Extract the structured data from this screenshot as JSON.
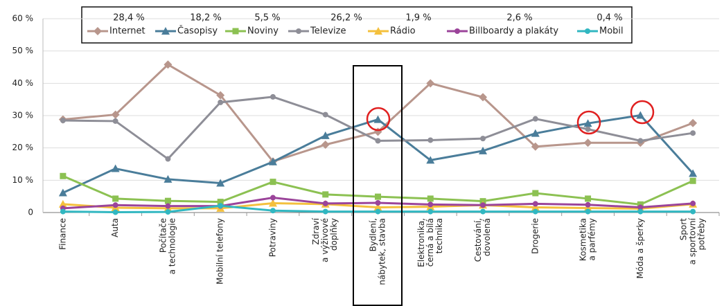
{
  "chart_data": {
    "type": "line",
    "categories": [
      [
        "Finance"
      ],
      [
        "Auta"
      ],
      [
        "Počítače",
        "a technologie"
      ],
      [
        "Mobilní telefony"
      ],
      [
        "Potraviny"
      ],
      [
        "Zdraví",
        "a výživové",
        "doplňky"
      ],
      [
        "Bydlení,",
        "nábytek, stavba"
      ],
      [
        "Elektronika,",
        "černá a bílá",
        "technika"
      ],
      [
        "Cestování,",
        "dovolená"
      ],
      [
        "Drogerie"
      ],
      [
        "Kosmetika",
        "a parfémy"
      ],
      [
        "Móda a šperky"
      ],
      [
        "Sport",
        "a sportovní",
        "potřeby"
      ]
    ],
    "series": [
      {
        "name": "Internet",
        "share": "28,4 %",
        "color": "#b8968c",
        "marker": "diamond",
        "values": [
          28.8,
          30.3,
          45.8,
          36.3,
          15.8,
          21.0,
          25.0,
          40.0,
          35.7,
          20.4,
          21.6,
          21.6,
          27.7
        ]
      },
      {
        "name": "Časopisy",
        "share": "18,2 %",
        "color": "#4a7d9a",
        "marker": "triangle",
        "values": [
          6.1,
          13.6,
          10.3,
          9.1,
          15.7,
          23.8,
          28.8,
          16.2,
          19.1,
          24.5,
          27.6,
          30.1,
          12.1
        ]
      },
      {
        "name": "Noviny",
        "share": "5,5 %",
        "color": "#8cc152",
        "marker": "square",
        "values": [
          11.3,
          4.3,
          3.6,
          3.3,
          9.5,
          5.6,
          4.9,
          4.3,
          3.5,
          6.0,
          4.3,
          2.5,
          9.8
        ]
      },
      {
        "name": "Televize",
        "share": "26,2 %",
        "color": "#8e8e97",
        "marker": "circle",
        "values": [
          28.5,
          28.3,
          16.6,
          34.1,
          35.8,
          30.3,
          22.2,
          22.4,
          22.9,
          29.0,
          25.8,
          22.2,
          24.6
        ]
      },
      {
        "name": "Rádio",
        "share": "1,9 %",
        "color": "#f4c03d",
        "marker": "triangle",
        "values": [
          2.6,
          1.5,
          1.3,
          1.3,
          2.9,
          2.6,
          1.6,
          1.8,
          2.3,
          1.6,
          1.4,
          1.2,
          2.6
        ]
      },
      {
        "name": "Billboardy a plakáty",
        "share": "2,6 %",
        "color": "#9b449a",
        "marker": "circle",
        "values": [
          1.3,
          2.3,
          2.0,
          2.0,
          4.6,
          2.8,
          3.0,
          2.5,
          2.3,
          2.7,
          2.4,
          1.6,
          2.8
        ]
      },
      {
        "name": "Mobil",
        "share": "0,4 %",
        "color": "#31b7c1",
        "marker": "circle",
        "values": [
          0.3,
          0.1,
          0.2,
          2.1,
          0.6,
          0.3,
          0.3,
          0.3,
          0.3,
          0.3,
          0.3,
          0.3,
          0.3
        ]
      }
    ],
    "ylim": [
      0,
      60
    ],
    "yticks": [
      {
        "value": 0,
        "label": "0"
      },
      {
        "value": 10,
        "label": "10 %"
      },
      {
        "value": 20,
        "label": "20 %"
      },
      {
        "value": 30,
        "label": "30 %"
      },
      {
        "value": 40,
        "label": "40 %"
      },
      {
        "value": 50,
        "label": "50 %"
      },
      {
        "value": 60,
        "label": "60 %"
      }
    ],
    "grid": true
  }
}
